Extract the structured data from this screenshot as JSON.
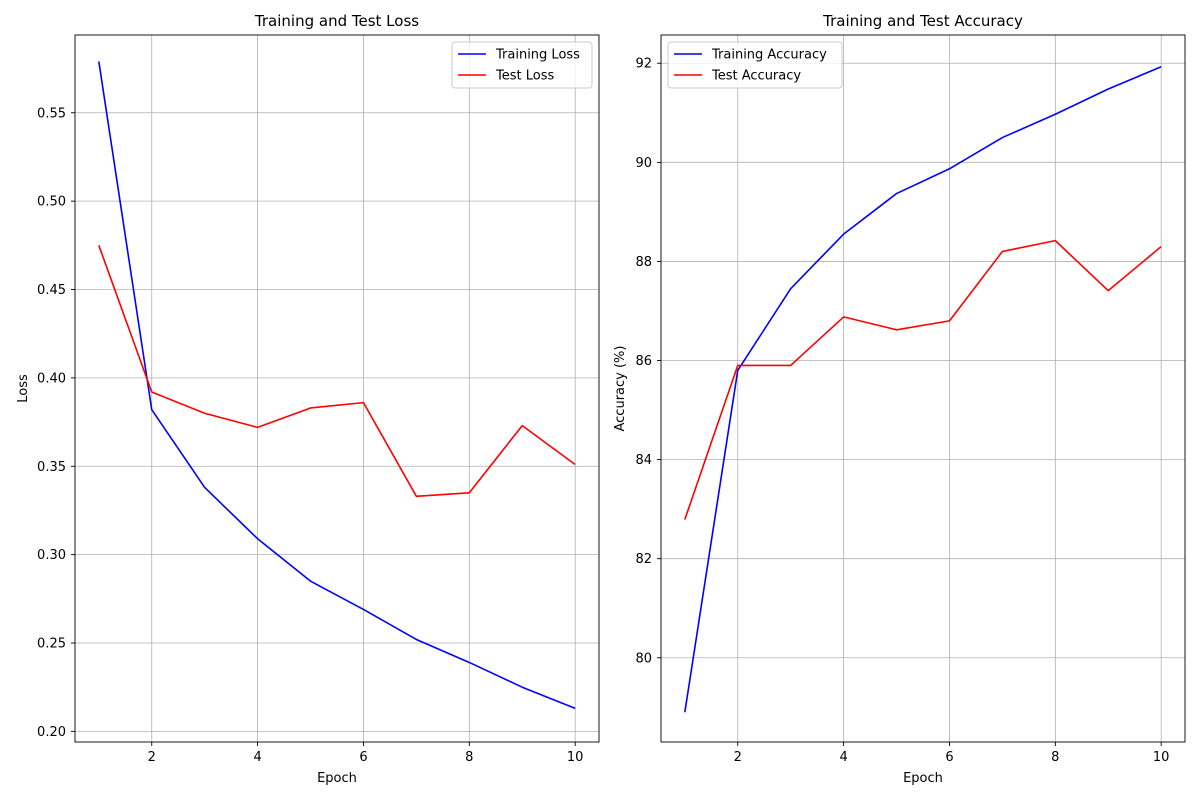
{
  "chart_data": [
    {
      "type": "line",
      "title": "Training and Test Loss",
      "xlabel": "Epoch",
      "ylabel": "Loss",
      "x": [
        1,
        2,
        3,
        4,
        5,
        6,
        7,
        8,
        9,
        10
      ],
      "xlim": [
        0.55,
        10.45
      ],
      "ylim": [
        0.194,
        0.594
      ],
      "xticks": [
        2,
        4,
        6,
        8,
        10
      ],
      "xtick_labels": [
        "2",
        "4",
        "6",
        "8",
        "10"
      ],
      "yticks": [
        0.2,
        0.25,
        0.3,
        0.35,
        0.4,
        0.45,
        0.5,
        0.55
      ],
      "ytick_labels": [
        "0.20",
        "0.25",
        "0.30",
        "0.35",
        "0.40",
        "0.45",
        "0.50",
        "0.55"
      ],
      "grid": true,
      "legend_position": "top-right",
      "series": [
        {
          "name": "Training Loss",
          "color": "#0000ff",
          "values": [
            0.579,
            0.382,
            0.338,
            0.309,
            0.285,
            0.269,
            0.252,
            0.239,
            0.225,
            0.213
          ]
        },
        {
          "name": "Test Loss",
          "color": "#ff0000",
          "values": [
            0.475,
            0.392,
            0.38,
            0.372,
            0.383,
            0.386,
            0.333,
            0.335,
            0.373,
            0.351
          ]
        }
      ]
    },
    {
      "type": "line",
      "title": "Training and Test Accuracy",
      "xlabel": "Epoch",
      "ylabel": "Accuracy (%)",
      "x": [
        1,
        2,
        3,
        4,
        5,
        6,
        7,
        8,
        9,
        10
      ],
      "xlim": [
        0.55,
        10.45
      ],
      "ylim": [
        78.3,
        92.57
      ],
      "xticks": [
        2,
        4,
        6,
        8,
        10
      ],
      "xtick_labels": [
        "2",
        "4",
        "6",
        "8",
        "10"
      ],
      "yticks": [
        80,
        82,
        84,
        86,
        88,
        90,
        92
      ],
      "ytick_labels": [
        "80",
        "82",
        "84",
        "86",
        "88",
        "90",
        "92"
      ],
      "grid": true,
      "legend_position": "top-left",
      "series": [
        {
          "name": "Training Accuracy",
          "color": "#0000ff",
          "values": [
            78.9,
            85.8,
            87.45,
            88.55,
            89.37,
            89.87,
            90.5,
            90.97,
            91.48,
            91.93
          ]
        },
        {
          "name": "Test Accuracy",
          "color": "#ff0000",
          "values": [
            82.79,
            85.9,
            85.9,
            86.88,
            86.62,
            86.8,
            88.2,
            88.42,
            87.41,
            88.3
          ]
        }
      ]
    }
  ]
}
